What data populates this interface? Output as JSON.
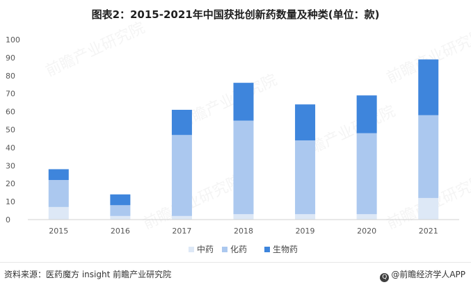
{
  "title": "图表2：2015-2021年中国获批创新药数量及种类(单位：款)",
  "source": "资料来源：医药魔方 insight 前瞻产业研究院",
  "brand": "@前瞻经济学人APP",
  "watermark": "前瞻产业研究院",
  "colors": {
    "background": "#ffffff",
    "axis": "#d0d0d0"
  },
  "chart_data": {
    "type": "bar",
    "stacked": true,
    "categories": [
      "2015",
      "2016",
      "2017",
      "2018",
      "2019",
      "2020",
      "2021"
    ],
    "series": [
      {
        "name": "中药",
        "color": "#dde8f6",
        "values": [
          7,
          2,
          2,
          3,
          3,
          3,
          12
        ]
      },
      {
        "name": "化药",
        "color": "#abc8ef",
        "values": [
          15,
          6,
          45,
          52,
          41,
          45,
          46
        ]
      },
      {
        "name": "生物药",
        "color": "#3e85dc",
        "values": [
          6,
          6,
          14,
          21,
          20,
          21,
          31
        ]
      }
    ],
    "ylim": [
      0,
      100
    ],
    "yticks": [
      0,
      10,
      20,
      30,
      40,
      50,
      60,
      70,
      80,
      90,
      100
    ],
    "grid": false,
    "legend": "bottom"
  }
}
